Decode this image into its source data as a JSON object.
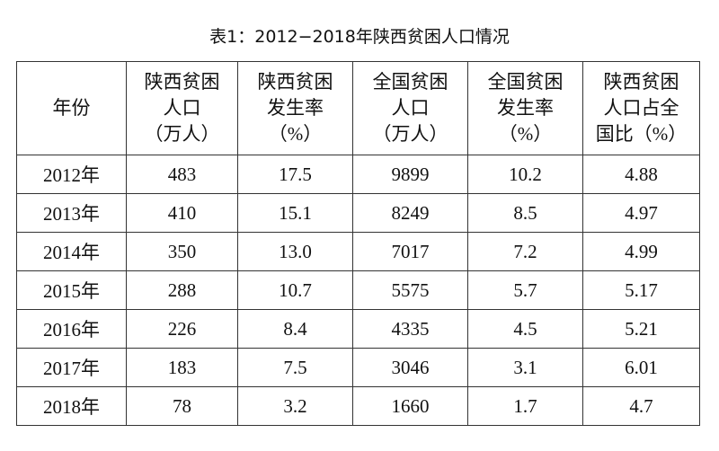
{
  "title": "表1：2012−2018年陕西贫困人口情况",
  "table": {
    "header": [
      [
        "年份"
      ],
      [
        "陕西贫困",
        "人口",
        "（万人）"
      ],
      [
        "陕西贫困",
        "发生率",
        "（%）"
      ],
      [
        "全国贫困",
        "人口",
        "（万人）"
      ],
      [
        "全国贫困",
        "发生率",
        "（%）"
      ],
      [
        "陕西贫困",
        "人口占全",
        "国比（%）"
      ]
    ],
    "rows": [
      [
        "2012年",
        "483",
        "17.5",
        "9899",
        "10.2",
        "4.88"
      ],
      [
        "2013年",
        "410",
        "15.1",
        "8249",
        "8.5",
        "4.97"
      ],
      [
        "2014年",
        "350",
        "13.0",
        "7017",
        "7.2",
        "4.99"
      ],
      [
        "2015年",
        "288",
        "10.7",
        "5575",
        "5.7",
        "5.17"
      ],
      [
        "2016年",
        "226",
        "8.4",
        "4335",
        "4.5",
        "5.21"
      ],
      [
        "2017年",
        "183",
        "7.5",
        "3046",
        "3.1",
        "6.01"
      ],
      [
        "2018年",
        "78",
        "3.2",
        "1660",
        "1.7",
        "4.7"
      ]
    ]
  }
}
